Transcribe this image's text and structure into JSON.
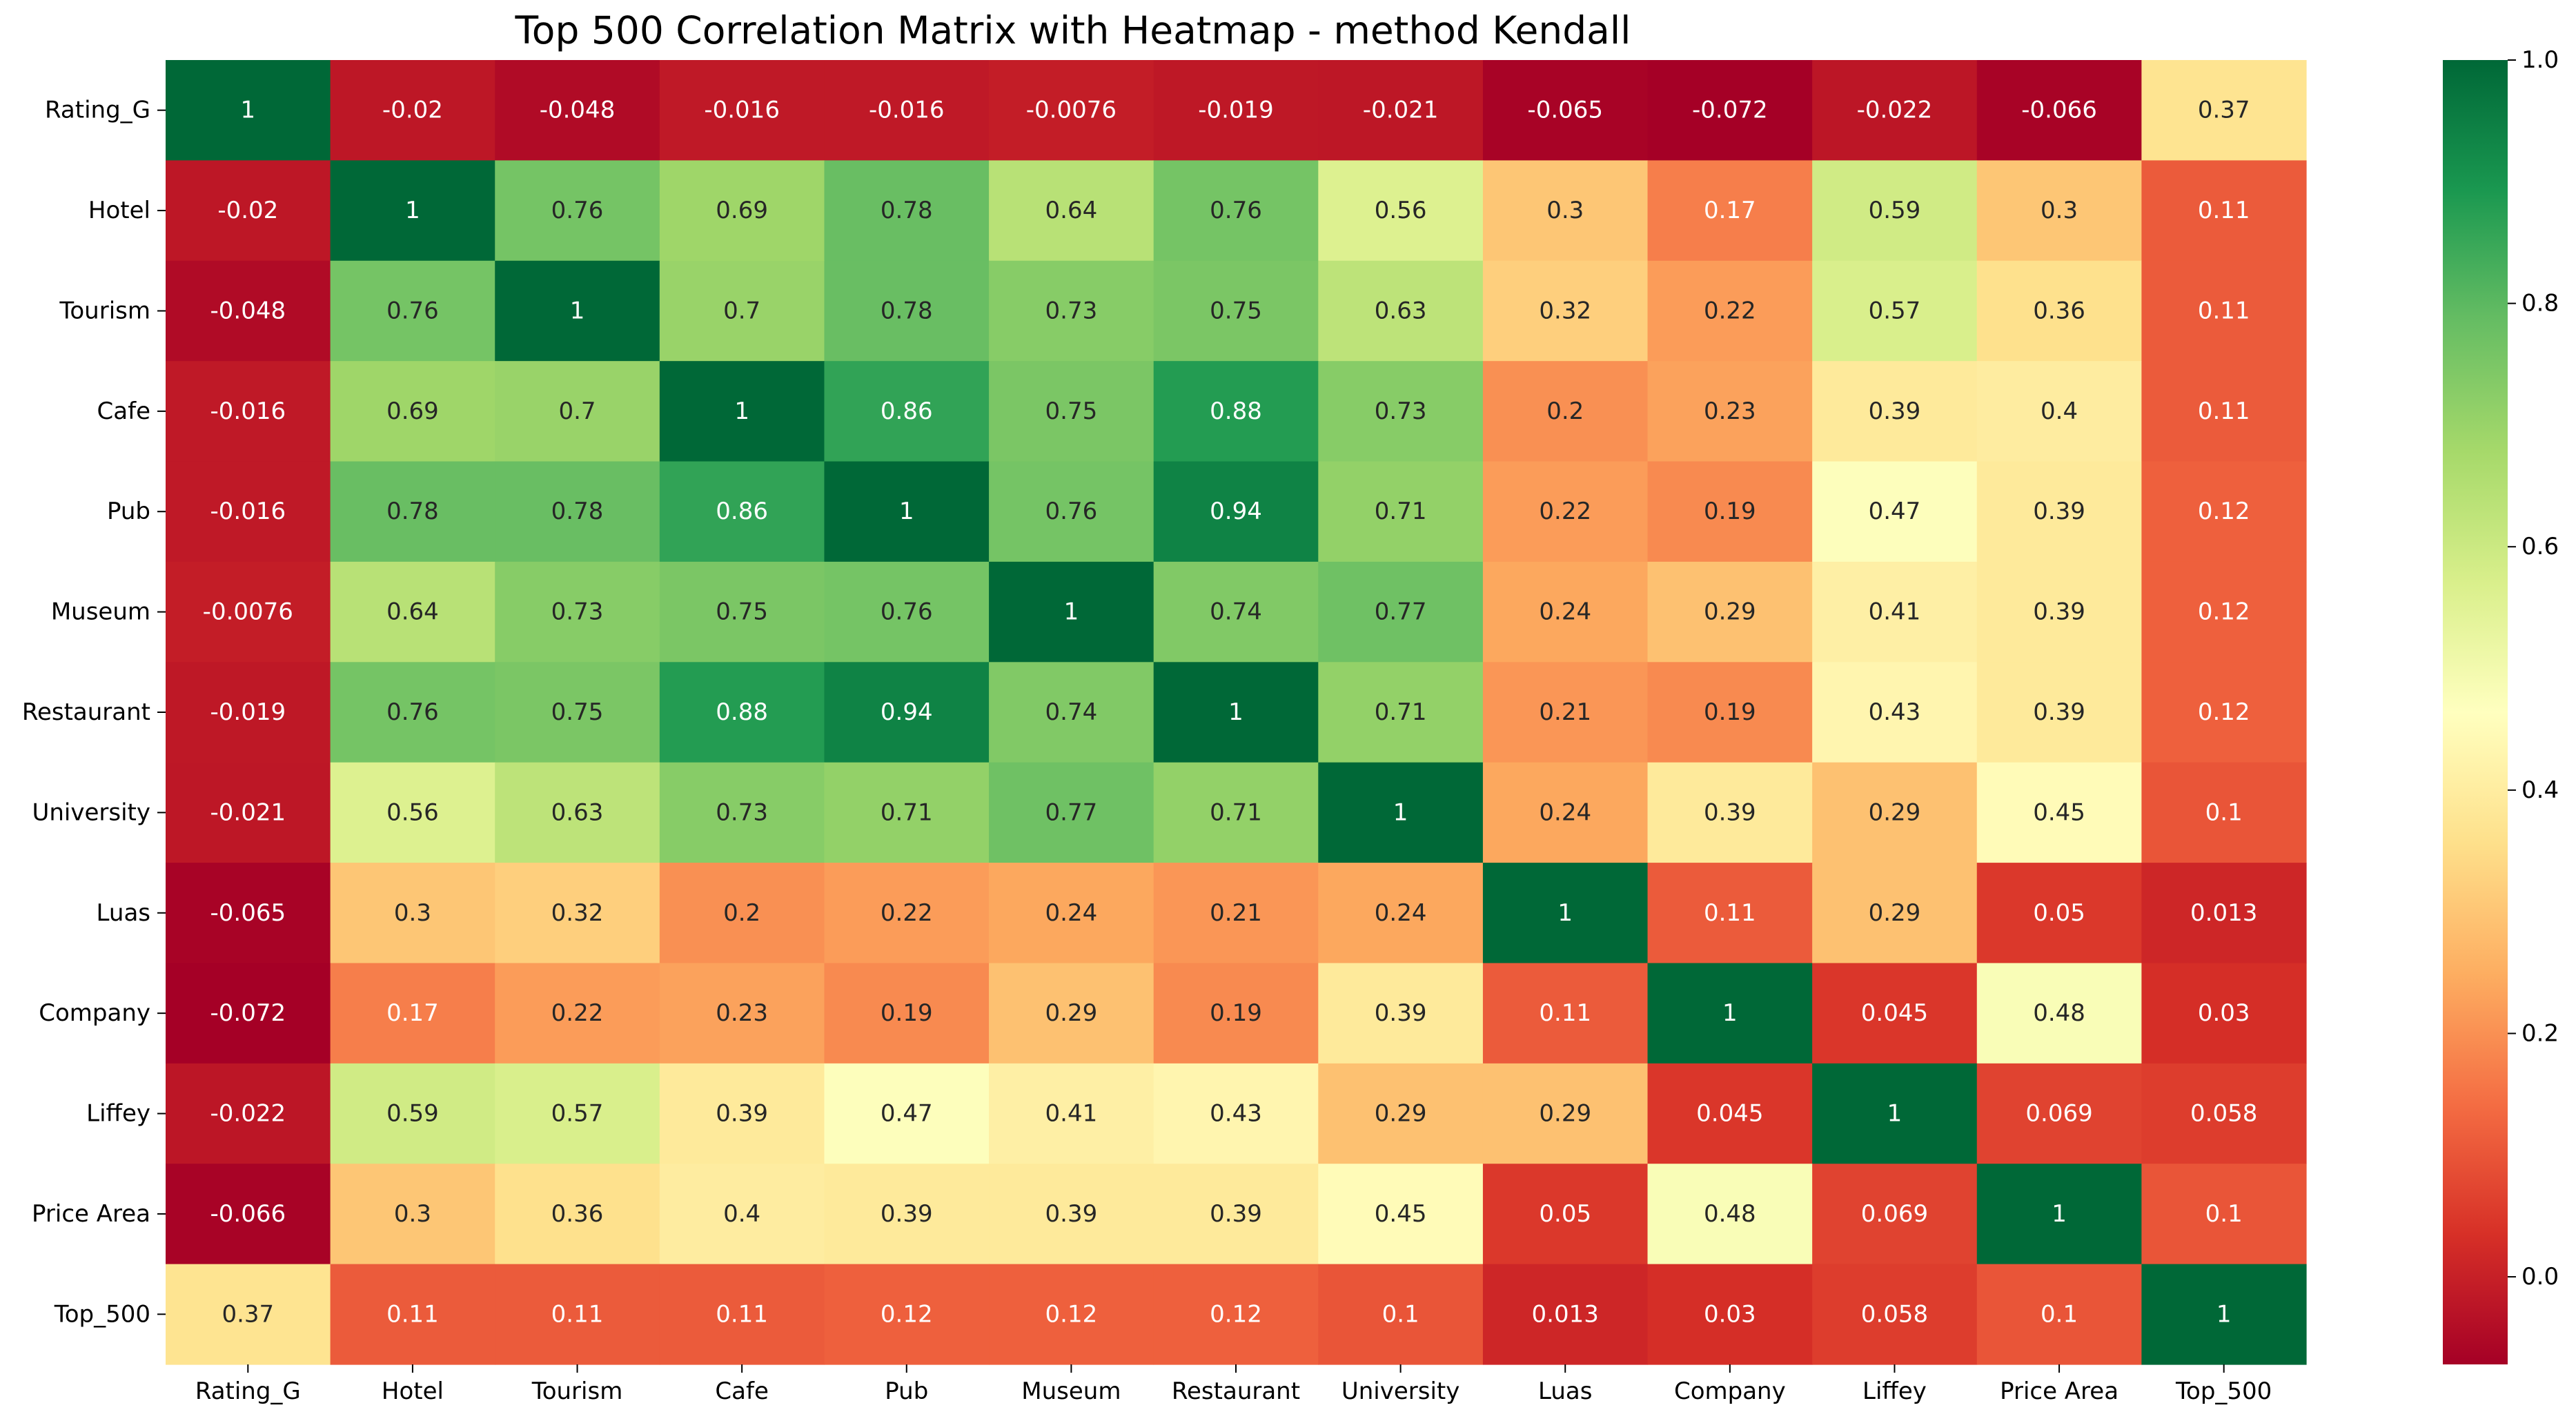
{
  "chart_data": {
    "type": "heatmap",
    "title": "Top 500 Correlation Matrix with Heatmap - method Kendall",
    "xlabel": "",
    "ylabel": "",
    "x_labels": [
      "Rating_G",
      "Hotel",
      "Tourism",
      "Cafe",
      "Pub",
      "Museum",
      "Restaurant",
      "University",
      "Luas",
      "Company",
      "Liffey",
      "Price Area",
      "Top_500"
    ],
    "y_labels": [
      "Rating_G",
      "Hotel",
      "Tourism",
      "Cafe",
      "Pub",
      "Museum",
      "Restaurant",
      "University",
      "Luas",
      "Company",
      "Liffey",
      "Price Area",
      "Top_500"
    ],
    "values": [
      [
        1,
        -0.02,
        -0.048,
        -0.016,
        -0.016,
        -0.0076,
        -0.019,
        -0.021,
        -0.065,
        -0.072,
        -0.022,
        -0.066,
        0.37
      ],
      [
        -0.02,
        1,
        0.76,
        0.69,
        0.78,
        0.64,
        0.76,
        0.56,
        0.3,
        0.17,
        0.59,
        0.3,
        0.11
      ],
      [
        -0.048,
        0.76,
        1,
        0.7,
        0.78,
        0.73,
        0.75,
        0.63,
        0.32,
        0.22,
        0.57,
        0.36,
        0.11
      ],
      [
        -0.016,
        0.69,
        0.7,
        1,
        0.86,
        0.75,
        0.88,
        0.73,
        0.2,
        0.23,
        0.39,
        0.4,
        0.11
      ],
      [
        -0.016,
        0.78,
        0.78,
        0.86,
        1,
        0.76,
        0.94,
        0.71,
        0.22,
        0.19,
        0.47,
        0.39,
        0.12
      ],
      [
        -0.0076,
        0.64,
        0.73,
        0.75,
        0.76,
        1,
        0.74,
        0.77,
        0.24,
        0.29,
        0.41,
        0.39,
        0.12
      ],
      [
        -0.019,
        0.76,
        0.75,
        0.88,
        0.94,
        0.74,
        1,
        0.71,
        0.21,
        0.19,
        0.43,
        0.39,
        0.12
      ],
      [
        -0.021,
        0.56,
        0.63,
        0.73,
        0.71,
        0.77,
        0.71,
        1,
        0.24,
        0.39,
        0.29,
        0.45,
        0.1
      ],
      [
        -0.065,
        0.3,
        0.32,
        0.2,
        0.22,
        0.24,
        0.21,
        0.24,
        1,
        0.11,
        0.29,
        0.05,
        0.013
      ],
      [
        -0.072,
        0.17,
        0.22,
        0.23,
        0.19,
        0.29,
        0.19,
        0.39,
        0.11,
        1,
        0.045,
        0.48,
        0.03
      ],
      [
        -0.022,
        0.59,
        0.57,
        0.39,
        0.47,
        0.41,
        0.43,
        0.29,
        0.29,
        0.045,
        1,
        0.069,
        0.058
      ],
      [
        -0.066,
        0.3,
        0.36,
        0.4,
        0.39,
        0.39,
        0.39,
        0.45,
        0.05,
        0.48,
        0.069,
        1,
        0.1
      ],
      [
        0.37,
        0.11,
        0.11,
        0.11,
        0.12,
        0.12,
        0.12,
        0.1,
        0.013,
        0.03,
        0.058,
        0.1,
        1
      ]
    ],
    "annotations": true,
    "colormap": "RdYlGn",
    "vmin": -0.072,
    "vmax": 1,
    "colorbar_ticks": [
      0.0,
      0.2,
      0.4,
      0.6,
      0.8,
      1.0
    ],
    "colorbar_tick_labels": [
      "0.0",
      "0.2",
      "0.4",
      "0.6",
      "0.8",
      "1.0"
    ],
    "grid": false,
    "legend": "colorbar-right"
  }
}
